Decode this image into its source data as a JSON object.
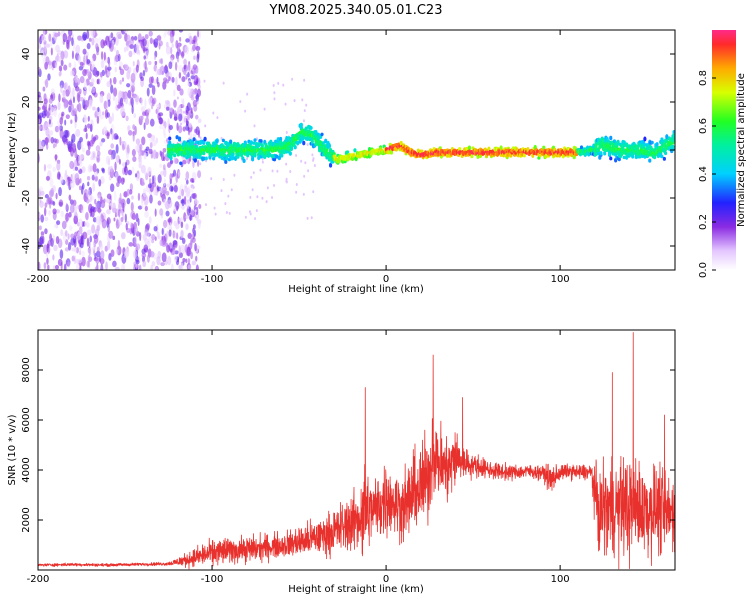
{
  "figure": {
    "title": "YM08.2025.340.05.01.C23"
  },
  "chart_data": [
    {
      "type": "heatmap",
      "name": "spectrogram",
      "xlabel": "Height of straight line (km)",
      "ylabel": "Frequency (Hz)",
      "xlim": [
        -200,
        166
      ],
      "ylim": [
        -50,
        50
      ],
      "xticks": [
        -200,
        -100,
        0,
        100
      ],
      "yticks": [
        -40,
        -20,
        0,
        20,
        40
      ],
      "colorbar": {
        "label": "Normalized spectral amplitude",
        "range": [
          0,
          1
        ],
        "ticks": [
          "0.0",
          "0.2",
          "0.4",
          "0.6",
          "0.8"
        ],
        "tick_values": [
          0.0,
          0.2,
          0.4,
          0.6,
          0.8
        ]
      },
      "ridge": {
        "description": "dominant frequency ridge (x in km, y in Hz)",
        "x": [
          -125,
          -110,
          -95,
          -80,
          -65,
          -55,
          -48,
          -42,
          -35,
          -28,
          -22,
          -15,
          -8,
          0,
          8,
          14,
          20,
          30,
          45,
          60,
          75,
          85,
          95,
          110,
          118,
          125,
          135,
          145,
          155,
          166
        ],
        "y": [
          0,
          0,
          0,
          0,
          0,
          2,
          8,
          6,
          0,
          -4,
          -3,
          -2,
          -1,
          0,
          2,
          -1,
          -2,
          -1,
          -1,
          -1,
          -1,
          -1,
          -1,
          -1,
          0,
          2,
          0,
          0,
          -1,
          4
        ]
      },
      "scatter_region": {
        "description": "noisy low-amplitude speckle at heights below about -120 km spanning all frequencies",
        "x_range": [
          -200,
          -115
        ],
        "y_range": [
          -50,
          50
        ]
      }
    },
    {
      "type": "line",
      "name": "snr",
      "xlabel": "Height of straight line (km)",
      "ylabel": "SNR (10 * v/v)",
      "xlim": [
        -200,
        166
      ],
      "ylim": [
        0,
        9600
      ],
      "xticks": [
        -200,
        -100,
        0,
        100
      ],
      "yticks": [
        2000,
        4000,
        6000,
        8000
      ],
      "color": "#e8302c",
      "series": [
        {
          "name": "SNR envelope",
          "x": [
            -200,
            -180,
            -160,
            -140,
            -125,
            -115,
            -105,
            -95,
            -85,
            -75,
            -65,
            -55,
            -45,
            -35,
            -25,
            -15,
            -12,
            -8,
            -4,
            0,
            5,
            10,
            15,
            20,
            25,
            27,
            30,
            35,
            40,
            45,
            50,
            60,
            70,
            80,
            90,
            95,
            100,
            105,
            110,
            118,
            122,
            126,
            130,
            135,
            140,
            145,
            150,
            155,
            160,
            166
          ],
          "base": [
            200,
            220,
            200,
            230,
            250,
            400,
            600,
            750,
            800,
            850,
            950,
            1050,
            1200,
            1400,
            1700,
            2100,
            2300,
            2400,
            2600,
            2900,
            2700,
            2500,
            3000,
            3300,
            3900,
            4800,
            4300,
            4000,
            4500,
            4300,
            4200,
            4000,
            3900,
            3950,
            3900,
            3600,
            3900,
            3950,
            3900,
            3900,
            2300,
            2500,
            2400,
            2600,
            2400,
            2600,
            2300,
            2500,
            2200,
            2300
          ],
          "amp": [
            80,
            90,
            80,
            90,
            100,
            400,
            650,
            800,
            700,
            800,
            700,
            800,
            1000,
            1100,
            1500,
            1800,
            3500,
            1500,
            2000,
            2200,
            1800,
            2000,
            2300,
            2500,
            2600,
            2200,
            2300,
            2000,
            1800,
            900,
            700,
            500,
            450,
            400,
            400,
            900,
            450,
            400,
            450,
            500,
            2600,
            2500,
            2800,
            2800,
            3000,
            2600,
            2700,
            2500,
            2400,
            2300
          ]
        }
      ],
      "peaks": {
        "x": [
          -12,
          27,
          44,
          130,
          142,
          160
        ],
        "y": [
          7300,
          8600,
          6900,
          7900,
          9500,
          6200
        ]
      }
    }
  ]
}
